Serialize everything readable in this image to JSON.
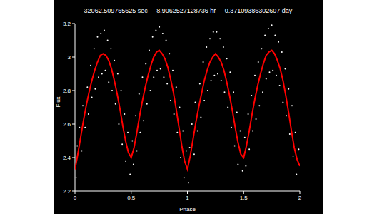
{
  "chart_data": {
    "type": "scatter",
    "title": "32062.509765625 sec     8.9062527128736 hr     0.37109386302607 day",
    "x_label": "Phase",
    "y_label": "Flux",
    "xlim": [
      0,
      2
    ],
    "xticks": [
      0,
      0.5,
      1,
      1.5,
      2
    ],
    "ylim": [
      2.2,
      3.2
    ],
    "yticks": [
      2.2,
      2.4,
      2.6,
      2.8,
      3,
      3.2
    ],
    "grid": false,
    "series": [
      {
        "type": "scatter",
        "color": "#ffffff",
        "marker": "dot",
        "x": [
          0.01,
          0.02,
          0.04,
          0.06,
          0.07,
          0.09,
          0.11,
          0.12,
          0.14,
          0.15,
          0.17,
          0.18,
          0.2,
          0.21,
          0.23,
          0.24,
          0.26,
          0.27,
          0.29,
          0.3,
          0.32,
          0.33,
          0.35,
          0.36,
          0.38,
          0.39,
          0.41,
          0.42,
          0.44,
          0.45,
          0.47,
          0.49,
          0.51,
          0.52,
          0.54,
          0.55,
          0.57,
          0.58,
          0.6,
          0.61,
          0.63,
          0.64,
          0.66,
          0.67,
          0.69,
          0.7,
          0.72,
          0.73,
          0.75,
          0.76,
          0.78,
          0.79,
          0.81,
          0.82,
          0.84,
          0.85,
          0.87,
          0.88,
          0.9,
          0.91,
          0.93,
          0.94,
          0.96,
          0.97,
          0.99,
          1.01,
          1.02,
          1.04,
          1.06,
          1.07,
          1.09,
          1.11,
          1.12,
          1.14,
          1.15,
          1.17,
          1.18,
          1.2,
          1.21,
          1.23,
          1.24,
          1.26,
          1.27,
          1.29,
          1.3,
          1.32,
          1.33,
          1.35,
          1.36,
          1.38,
          1.39,
          1.41,
          1.42,
          1.44,
          1.45,
          1.47,
          1.49,
          1.51,
          1.52,
          1.54,
          1.55,
          1.57,
          1.58,
          1.6,
          1.61,
          1.63,
          1.64,
          1.66,
          1.67,
          1.69,
          1.7,
          1.72,
          1.73,
          1.75,
          1.76,
          1.78,
          1.79,
          1.81,
          1.82,
          1.84,
          1.85,
          1.87,
          1.88,
          1.9,
          1.91,
          1.93,
          1.94,
          1.96,
          1.97,
          1.99
        ],
        "values": [
          2.28,
          2.47,
          2.58,
          2.44,
          2.71,
          2.58,
          2.82,
          2.66,
          2.95,
          2.76,
          3.05,
          2.81,
          3.12,
          2.88,
          3.14,
          2.9,
          3.16,
          2.92,
          3.1,
          2.85,
          3.05,
          2.8,
          2.98,
          2.72,
          2.9,
          2.6,
          2.8,
          2.48,
          2.66,
          2.38,
          2.55,
          2.3,
          2.5,
          2.36,
          2.65,
          2.44,
          2.78,
          2.55,
          2.88,
          2.62,
          2.96,
          2.72,
          3.04,
          2.8,
          3.12,
          2.88,
          3.16,
          2.92,
          3.18,
          2.93,
          3.14,
          2.88,
          3.1,
          2.84,
          3.02,
          2.74,
          2.92,
          2.66,
          2.82,
          2.55,
          2.7,
          2.4,
          2.56,
          2.28,
          2.44,
          2.25,
          2.46,
          2.6,
          2.42,
          2.73,
          2.56,
          2.84,
          2.64,
          2.97,
          2.74,
          3.06,
          2.8,
          3.11,
          2.86,
          3.15,
          2.89,
          3.15,
          2.9,
          3.11,
          2.86,
          3.06,
          2.79,
          2.99,
          2.7,
          2.91,
          2.58,
          2.79,
          2.47,
          2.67,
          2.36,
          2.56,
          2.32,
          2.52,
          2.35,
          2.66,
          2.45,
          2.77,
          2.56,
          2.89,
          2.63,
          2.97,
          2.71,
          3.05,
          2.79,
          3.13,
          2.87,
          3.17,
          2.91,
          3.19,
          2.92,
          3.13,
          2.89,
          3.09,
          2.83,
          3.03,
          2.73,
          2.93,
          2.65,
          2.81,
          2.54,
          2.71,
          2.41,
          2.55,
          2.3,
          2.45
        ]
      },
      {
        "type": "line",
        "color": "#ff0000",
        "x": [
          0,
          0.025,
          0.05,
          0.075,
          0.1,
          0.125,
          0.15,
          0.175,
          0.2,
          0.225,
          0.25,
          0.275,
          0.3,
          0.325,
          0.35,
          0.375,
          0.4,
          0.425,
          0.45,
          0.475,
          0.5,
          0.525,
          0.55,
          0.575,
          0.6,
          0.625,
          0.65,
          0.675,
          0.7,
          0.725,
          0.75,
          0.775,
          0.8,
          0.825,
          0.85,
          0.875,
          0.9,
          0.925,
          0.95,
          0.975,
          1,
          1.025,
          1.05,
          1.075,
          1.1,
          1.125,
          1.15,
          1.175,
          1.2,
          1.225,
          1.25,
          1.275,
          1.3,
          1.325,
          1.35,
          1.375,
          1.4,
          1.425,
          1.45,
          1.475,
          1.5,
          1.525,
          1.55,
          1.575,
          1.6,
          1.625,
          1.65,
          1.675,
          1.7,
          1.725,
          1.75,
          1.775,
          1.8,
          1.825,
          1.85,
          1.875,
          1.9,
          1.925,
          1.95,
          1.975,
          2
        ],
        "values": [
          2.33,
          2.42,
          2.52,
          2.62,
          2.71,
          2.79,
          2.86,
          2.92,
          2.97,
          3.01,
          3.02,
          3.01,
          2.98,
          2.93,
          2.86,
          2.78,
          2.69,
          2.59,
          2.5,
          2.43,
          2.4,
          2.46,
          2.55,
          2.65,
          2.74,
          2.82,
          2.89,
          2.95,
          3.0,
          3.03,
          3.04,
          3.02,
          2.99,
          2.94,
          2.87,
          2.79,
          2.69,
          2.58,
          2.47,
          2.38,
          2.33,
          2.41,
          2.51,
          2.61,
          2.7,
          2.78,
          2.86,
          2.92,
          2.97,
          3.0,
          3.02,
          3.0,
          2.97,
          2.92,
          2.85,
          2.77,
          2.68,
          2.58,
          2.49,
          2.42,
          2.4,
          2.47,
          2.56,
          2.66,
          2.75,
          2.83,
          2.9,
          2.96,
          3.01,
          3.03,
          3.04,
          3.02,
          2.98,
          2.93,
          2.86,
          2.77,
          2.67,
          2.56,
          2.46,
          2.39,
          2.35
        ]
      }
    ]
  }
}
